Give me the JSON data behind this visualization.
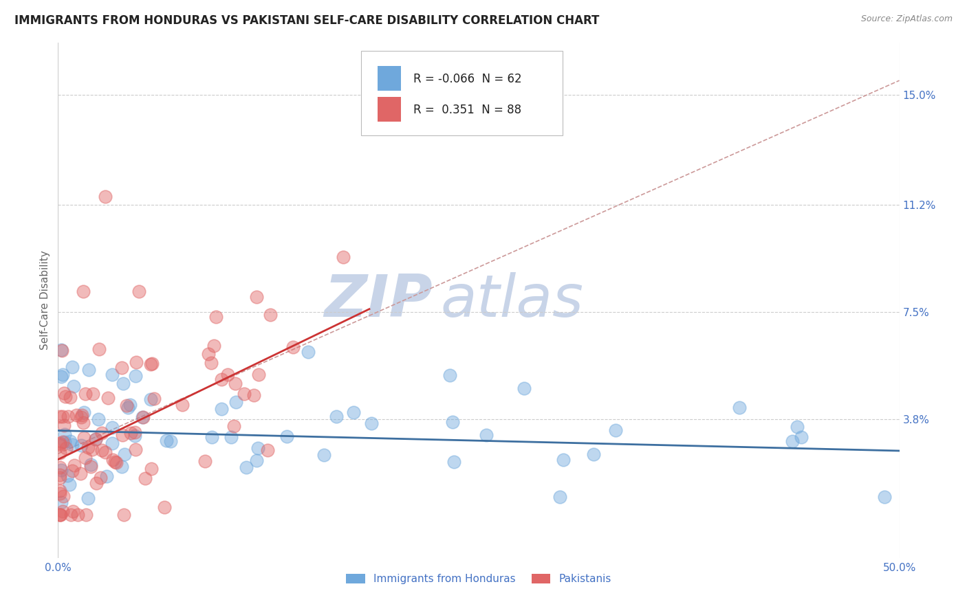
{
  "title": "IMMIGRANTS FROM HONDURAS VS PAKISTANI SELF-CARE DISABILITY CORRELATION CHART",
  "source": "Source: ZipAtlas.com",
  "ylabel": "Self-Care Disability",
  "ytick_vals": [
    0.038,
    0.075,
    0.112,
    0.15
  ],
  "ytick_labels": [
    "3.8%",
    "7.5%",
    "11.2%",
    "15.0%"
  ],
  "xlim": [
    0.0,
    0.5
  ],
  "ylim": [
    -0.01,
    0.168
  ],
  "legend_r1": "-0.066",
  "legend_n1": "62",
  "legend_r2": "0.351",
  "legend_n2": "88",
  "color_blue": "#6fa8dc",
  "color_pink": "#e06666",
  "color_trendline_blue": "#3d6fa0",
  "color_trendline_pink": "#cc3333",
  "color_axis_labels": "#4472c4",
  "watermark_zip": "ZIP",
  "watermark_atlas": "atlas",
  "title_fontsize": 12,
  "label_fontsize": 11,
  "tick_fontsize": 11,
  "blue_trend_x": [
    0.0,
    0.5
  ],
  "blue_trend_y": [
    0.034,
    0.027
  ],
  "pink_trend_x": [
    0.0,
    0.185
  ],
  "pink_trend_y": [
    0.024,
    0.076
  ],
  "gray_trend_x": [
    0.0,
    0.5
  ],
  "gray_trend_y": [
    0.026,
    0.155
  ]
}
